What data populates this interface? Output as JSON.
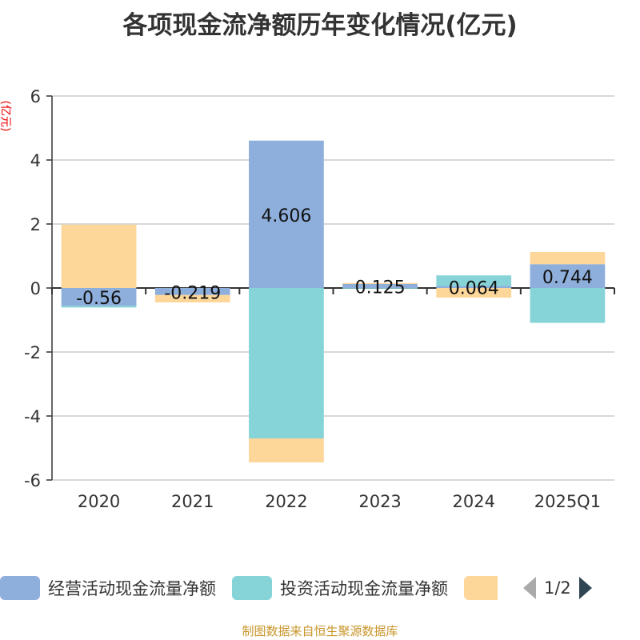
{
  "chart_data": {
    "type": "bar",
    "stacked": true,
    "title": "各项现金流净额历年变化情况(亿元)",
    "ylabel": "(亿元)",
    "categories": [
      "2020",
      "2021",
      "2022",
      "2023",
      "2024",
      "2025Q1"
    ],
    "ylim": [
      -6,
      6
    ],
    "yticks": [
      -6,
      -4,
      -2,
      0,
      2,
      4,
      6
    ],
    "grid": true,
    "series": [
      {
        "name": "经营活动现金流量净额",
        "color": "#8eaedb",
        "values": [
          -0.56,
          -0.219,
          4.606,
          0.125,
          0.064,
          0.744
        ],
        "labels": [
          "-0.56",
          "-0.219",
          "4.606",
          "0.125",
          "0.064",
          "0.744"
        ]
      },
      {
        "name": "投资活动现金流量净额",
        "color": "#86d4d8",
        "values": [
          -0.05,
          0,
          -4.7,
          -0.02,
          0.33,
          -1.09
        ]
      },
      {
        "name": "",
        "color": "#fdd699",
        "values": [
          1.98,
          -0.23,
          -0.75,
          0.03,
          -0.3,
          0.38
        ]
      }
    ],
    "legend": {
      "position": "bottom",
      "page": "1/2"
    }
  },
  "source": "制图数据来自恒生聚源数据库"
}
